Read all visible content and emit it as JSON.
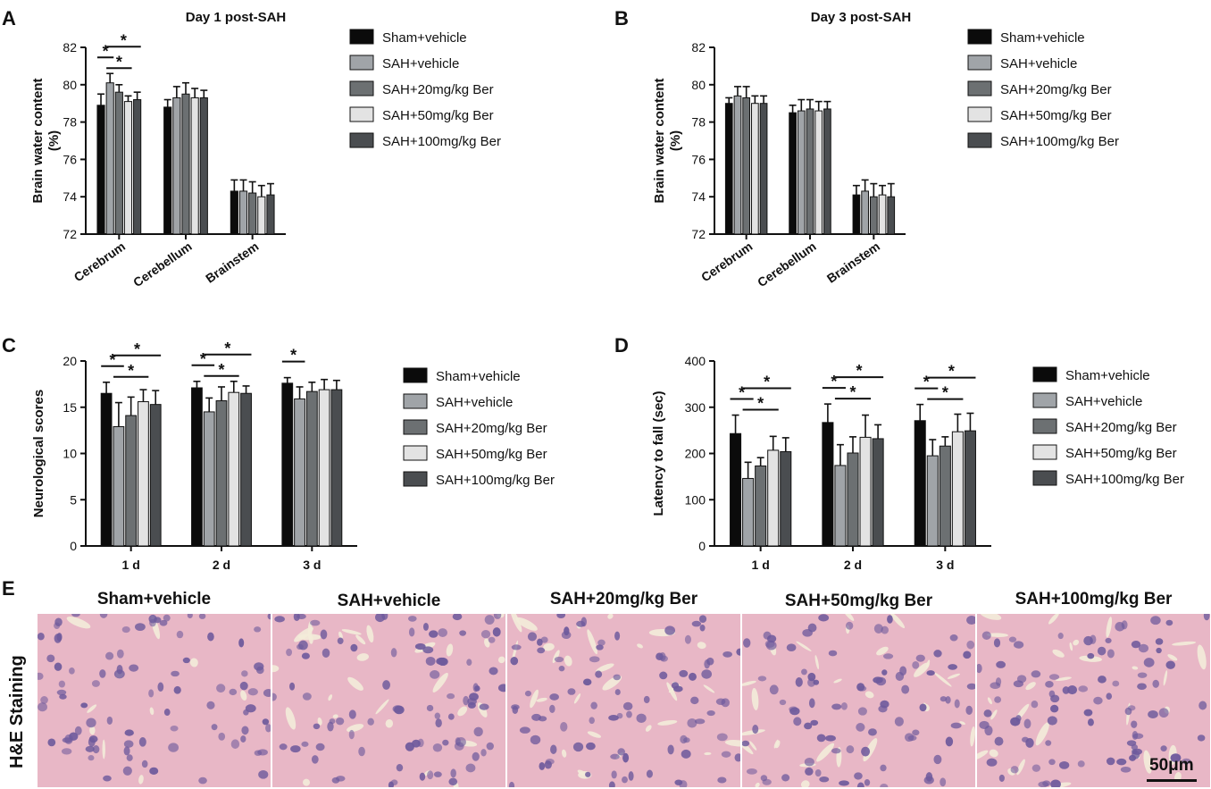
{
  "colors": {
    "groups": [
      "#0b0b0b",
      "#a0a4a8",
      "#6c7072",
      "#e3e3e3",
      "#4a4d50"
    ],
    "tissue_bg": "#e8b7c6",
    "nucleus": "#6e5a9c",
    "vessel": "#f3ecd9"
  },
  "legend_entries": [
    "Sham+vehicle",
    "SAH+vehicle",
    "SAH+20mg/kg Ber",
    "SAH+50mg/kg Ber",
    "SAH+100mg/kg Ber"
  ],
  "panels": {
    "A": "A",
    "B": "B",
    "C": "C",
    "D": "D",
    "E": "E"
  },
  "chart_data": [
    {
      "panel": "A",
      "type": "bar",
      "title": "Day 1 post-SAH",
      "ylabel": "Brain water content\n(%)",
      "ylim": [
        72,
        82
      ],
      "yticks": [
        "72",
        "74",
        "76",
        "78",
        "80",
        "82"
      ],
      "categories": [
        "Cerebrum",
        "Cerebellum",
        "Brainstem"
      ],
      "series": [
        {
          "name": "Sham+vehicle",
          "values": [
            78.9,
            78.8,
            74.3
          ],
          "errors": [
            0.6,
            0.4,
            0.6
          ]
        },
        {
          "name": "SAH+vehicle",
          "values": [
            80.1,
            79.3,
            74.3
          ],
          "errors": [
            0.5,
            0.6,
            0.6
          ]
        },
        {
          "name": "SAH+20mg/kg Ber",
          "values": [
            79.6,
            79.5,
            74.2
          ],
          "errors": [
            0.4,
            0.6,
            0.6
          ]
        },
        {
          "name": "SAH+50mg/kg Ber",
          "values": [
            79.1,
            79.3,
            74.0
          ],
          "errors": [
            0.3,
            0.5,
            0.6
          ]
        },
        {
          "name": "SAH+100mg/kg Ber",
          "values": [
            79.2,
            79.3,
            74.1
          ],
          "errors": [
            0.4,
            0.4,
            0.6
          ]
        }
      ],
      "significance": [
        {
          "category": 0,
          "from": 0,
          "to": 1,
          "label": "*"
        },
        {
          "category": 0,
          "from": 1,
          "to": 3,
          "label": "*"
        },
        {
          "category": 0,
          "from": 1,
          "to": 4,
          "label": "*"
        }
      ],
      "legend_position": "right"
    },
    {
      "panel": "B",
      "type": "bar",
      "title": "Day 3 post-SAH",
      "ylabel": "Brain water content\n(%)",
      "ylim": [
        72,
        82
      ],
      "yticks": [
        "72",
        "74",
        "76",
        "78",
        "80",
        "82"
      ],
      "categories": [
        "Cerebrum",
        "Cerebellum",
        "Brainstem"
      ],
      "series": [
        {
          "name": "Sham+vehicle",
          "values": [
            79.0,
            78.5,
            74.1
          ],
          "errors": [
            0.3,
            0.4,
            0.5
          ]
        },
        {
          "name": "SAH+vehicle",
          "values": [
            79.4,
            78.6,
            74.3
          ],
          "errors": [
            0.5,
            0.6,
            0.6
          ]
        },
        {
          "name": "SAH+20mg/kg Ber",
          "values": [
            79.3,
            78.7,
            74.0
          ],
          "errors": [
            0.6,
            0.5,
            0.7
          ]
        },
        {
          "name": "SAH+50mg/kg Ber",
          "values": [
            79.0,
            78.6,
            74.1
          ],
          "errors": [
            0.4,
            0.5,
            0.5
          ]
        },
        {
          "name": "SAH+100mg/kg Ber",
          "values": [
            79.0,
            78.7,
            74.0
          ],
          "errors": [
            0.4,
            0.4,
            0.7
          ]
        }
      ],
      "significance": [],
      "legend_position": "right"
    },
    {
      "panel": "C",
      "type": "bar",
      "title": "",
      "ylabel": "Neurological scores",
      "ylim": [
        0,
        20
      ],
      "yticks": [
        "0",
        "5",
        "10",
        "15",
        "20"
      ],
      "categories": [
        "1 d",
        "2 d",
        "3 d"
      ],
      "series": [
        {
          "name": "Sham+vehicle",
          "values": [
            16.5,
            17.1,
            17.6
          ],
          "errors": [
            1.2,
            0.7,
            0.6
          ]
        },
        {
          "name": "SAH+vehicle",
          "values": [
            12.9,
            14.5,
            15.9
          ],
          "errors": [
            2.6,
            1.5,
            1.3
          ]
        },
        {
          "name": "SAH+20mg/kg Ber",
          "values": [
            14.1,
            15.7,
            16.7
          ],
          "errors": [
            2.0,
            1.5,
            1.0
          ]
        },
        {
          "name": "SAH+50mg/kg Ber",
          "values": [
            15.6,
            16.6,
            16.9
          ],
          "errors": [
            1.3,
            1.2,
            1.1
          ]
        },
        {
          "name": "SAH+100mg/kg Ber",
          "values": [
            15.3,
            16.5,
            16.9
          ],
          "errors": [
            1.5,
            0.8,
            1.0
          ]
        }
      ],
      "significance": [
        {
          "category": 0,
          "from": 0,
          "to": 1,
          "label": "*"
        },
        {
          "category": 0,
          "from": 1,
          "to": 3,
          "label": "*"
        },
        {
          "category": 0,
          "from": 1,
          "to": 4,
          "label": "*"
        },
        {
          "category": 1,
          "from": 0,
          "to": 1,
          "label": "*"
        },
        {
          "category": 1,
          "from": 1,
          "to": 3,
          "label": "*"
        },
        {
          "category": 1,
          "from": 1,
          "to": 4,
          "label": "*"
        },
        {
          "category": 2,
          "from": 0,
          "to": 1,
          "label": "*"
        }
      ],
      "legend_position": "right"
    },
    {
      "panel": "D",
      "type": "bar",
      "title": "",
      "ylabel": "Latency to fall (sec)",
      "ylim": [
        0,
        400
      ],
      "yticks": [
        "0",
        "100",
        "200",
        "300",
        "400"
      ],
      "categories": [
        "1 d",
        "2 d",
        "3 d"
      ],
      "series": [
        {
          "name": "Sham+vehicle",
          "values": [
            243,
            267,
            271
          ],
          "errors": [
            40,
            40,
            35
          ]
        },
        {
          "name": "SAH+vehicle",
          "values": [
            146,
            174,
            195
          ],
          "errors": [
            35,
            45,
            35
          ]
        },
        {
          "name": "SAH+20mg/kg Ber",
          "values": [
            173,
            201,
            216
          ],
          "errors": [
            18,
            35,
            20
          ]
        },
        {
          "name": "SAH+50mg/kg Ber",
          "values": [
            207,
            235,
            247
          ],
          "errors": [
            30,
            48,
            38
          ]
        },
        {
          "name": "SAH+100mg/kg Ber",
          "values": [
            204,
            232,
            249
          ],
          "errors": [
            30,
            30,
            38
          ]
        }
      ],
      "significance": [
        {
          "category": 0,
          "from": 0,
          "to": 1,
          "label": "*"
        },
        {
          "category": 0,
          "from": 1,
          "to": 3,
          "label": "*"
        },
        {
          "category": 0,
          "from": 1,
          "to": 4,
          "label": "*"
        },
        {
          "category": 1,
          "from": 0,
          "to": 1,
          "label": "*"
        },
        {
          "category": 1,
          "from": 1,
          "to": 3,
          "label": "*"
        },
        {
          "category": 1,
          "from": 1,
          "to": 4,
          "label": "*"
        },
        {
          "category": 2,
          "from": 0,
          "to": 1,
          "label": "*"
        },
        {
          "category": 2,
          "from": 1,
          "to": 3,
          "label": "*"
        },
        {
          "category": 2,
          "from": 1,
          "to": 4,
          "label": "*"
        }
      ],
      "legend_position": "right"
    }
  ],
  "he_staining": {
    "side_label": "H&E Staining",
    "images": [
      {
        "label": "Sham+vehicle"
      },
      {
        "label": "SAH+vehicle"
      },
      {
        "label": "SAH+20mg/kg Ber"
      },
      {
        "label": "SAH+50mg/kg Ber"
      },
      {
        "label": "SAH+100mg/kg Ber"
      }
    ],
    "scale_bar": "50μm"
  }
}
